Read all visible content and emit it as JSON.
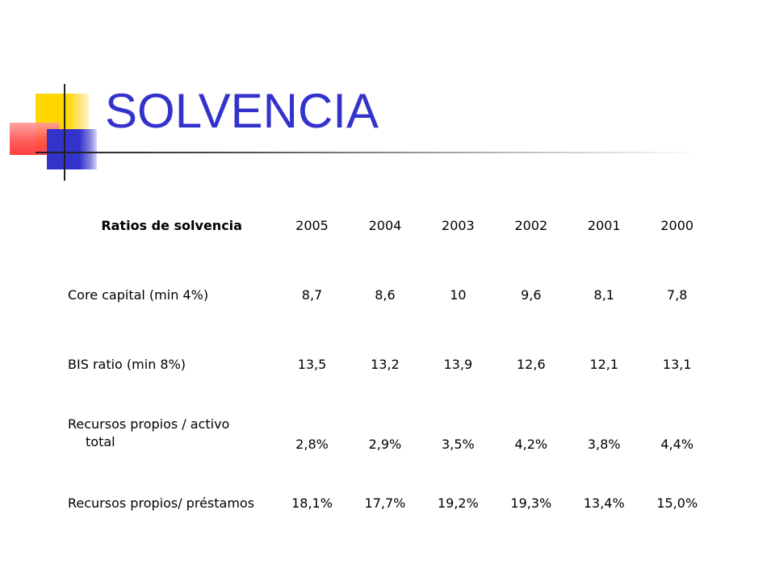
{
  "slide": {
    "title": "SOLVENCIA"
  },
  "table": {
    "header_label": "Ratios de solvencia",
    "years": [
      "2005",
      "2004",
      "2003",
      "2002",
      "2001",
      "2000"
    ],
    "rows": [
      {
        "label": "Core capital (min 4%)",
        "values": [
          "8,7",
          "8,6",
          "10",
          "9,6",
          "8,1",
          "7,8"
        ]
      },
      {
        "label": "BIS ratio (min 8%)",
        "values": [
          "13,5",
          "13,2",
          "13,9",
          "12,6",
          "12,1",
          "13,1"
        ]
      },
      {
        "label_line1": "Recursos propios / activo",
        "label_line2": "total",
        "values": [
          "2,8%",
          "2,9%",
          "3,5%",
          "4,2%",
          "3,8%",
          "4,4%"
        ]
      },
      {
        "label": "Recursos propios/ préstamos",
        "values": [
          "18,1%",
          "17,7%",
          "19,2%",
          "19,3%",
          "13,4%",
          "15,0%"
        ]
      }
    ]
  },
  "colors": {
    "title": "#3333cc",
    "logo_yellow": "#ffd700",
    "logo_red": "#ff4d4d",
    "logo_blue": "#3333cc"
  }
}
